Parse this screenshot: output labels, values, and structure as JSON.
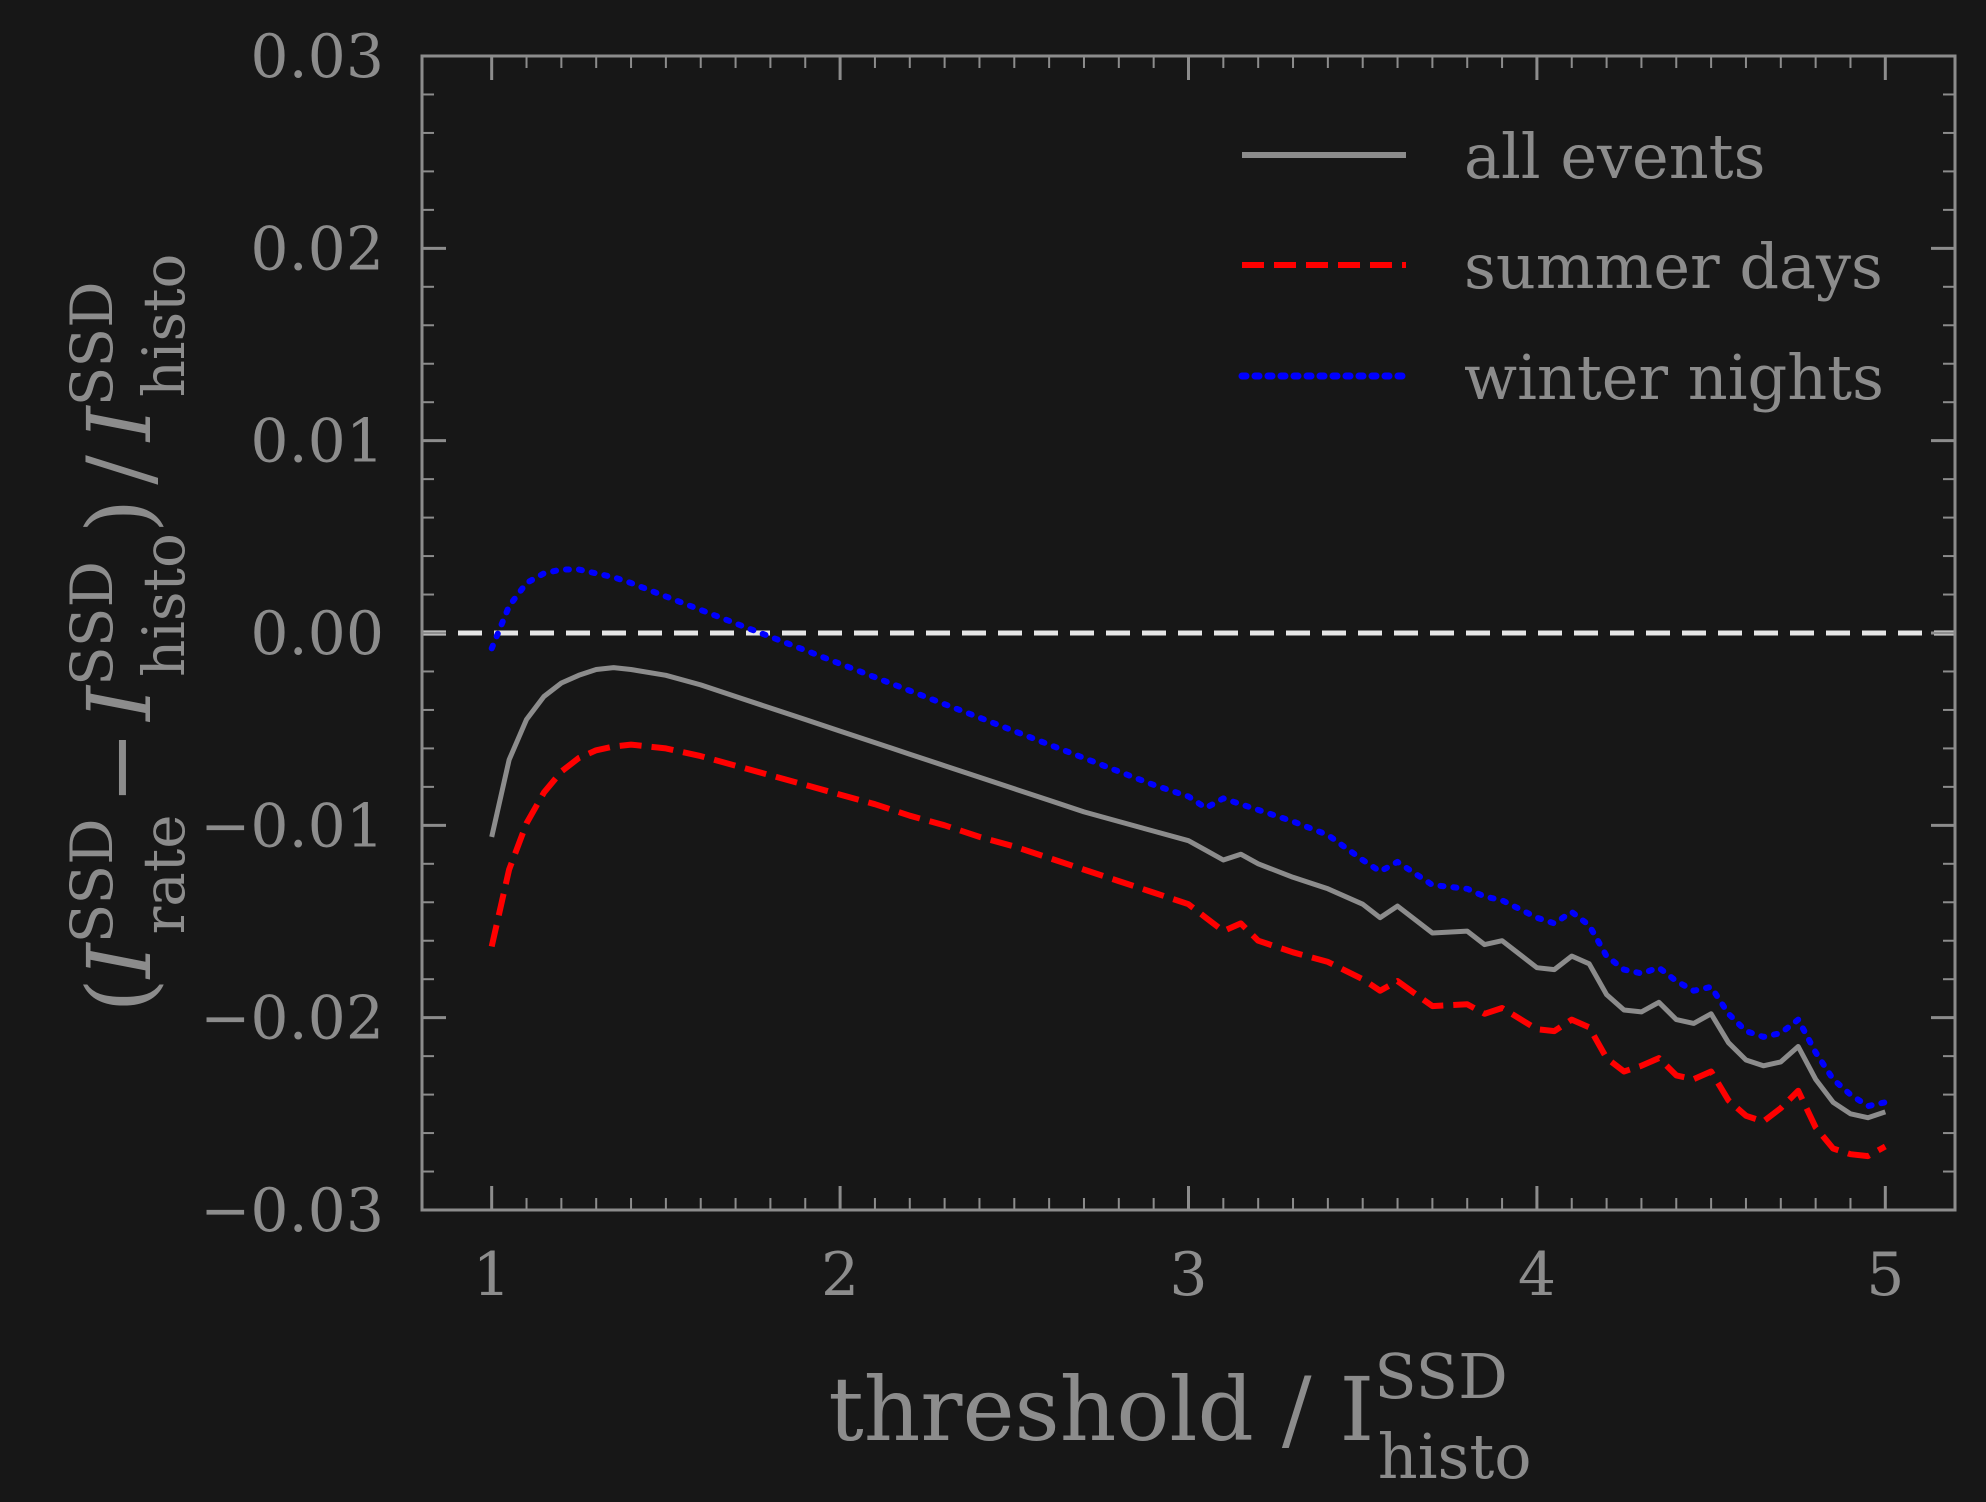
{
  "chart_data": {
    "type": "line",
    "title": "",
    "xlabel": {
      "main": "threshold / I",
      "sup": "SSD",
      "sub": "histo"
    },
    "ylabel": {
      "open": "(",
      "term1": "I",
      "term1_sup": "SSD",
      "term1_sub": "rate",
      "minus": "−",
      "term2": "I",
      "term2_sup": "SSD",
      "term2_sub": "histo",
      "close": ")",
      "slash": "/",
      "term3": "I",
      "term3_sup": "SSD",
      "term3_sub": "histo"
    },
    "xlim": [
      0.8,
      5.2
    ],
    "ylim": [
      -0.03,
      0.03
    ],
    "xticks": [
      1,
      2,
      3,
      4,
      5
    ],
    "xtick_labels": [
      "1",
      "2",
      "3",
      "4",
      "5"
    ],
    "yticks": [
      -0.03,
      -0.02,
      -0.01,
      0.0,
      0.01,
      0.02,
      0.03
    ],
    "ytick_labels": [
      "−0.03",
      "−0.02",
      "−0.01",
      "0.00",
      "0.01",
      "0.02",
      "0.03"
    ],
    "reference_line": {
      "y": 0.0,
      "style": "dashed",
      "color": "#e6e6e6"
    },
    "legend_position": "top-right",
    "series": [
      {
        "name": "all events",
        "color": "#8c8c8c",
        "style": "solid",
        "x": [
          1.0,
          1.05,
          1.1,
          1.15,
          1.2,
          1.25,
          1.3,
          1.35,
          1.4,
          1.5,
          1.6,
          1.7,
          1.8,
          1.9,
          2.0,
          2.1,
          2.2,
          2.3,
          2.4,
          2.5,
          2.6,
          2.7,
          2.8,
          2.9,
          3.0,
          3.05,
          3.1,
          3.15,
          3.2,
          3.3,
          3.4,
          3.5,
          3.55,
          3.6,
          3.7,
          3.8,
          3.85,
          3.9,
          4.0,
          4.05,
          4.1,
          4.15,
          4.2,
          4.25,
          4.3,
          4.35,
          4.4,
          4.45,
          4.5,
          4.55,
          4.6,
          4.65,
          4.7,
          4.75,
          4.8,
          4.85,
          4.9,
          4.95,
          5.0
        ],
        "values": [
          -0.0106,
          -0.0066,
          -0.0045,
          -0.0033,
          -0.0026,
          -0.0022,
          -0.0019,
          -0.0018,
          -0.0019,
          -0.0022,
          -0.0027,
          -0.0033,
          -0.0039,
          -0.0045,
          -0.0051,
          -0.0057,
          -0.0063,
          -0.0069,
          -0.0075,
          -0.0081,
          -0.0087,
          -0.0093,
          -0.0098,
          -0.0103,
          -0.0108,
          -0.0113,
          -0.0118,
          -0.0115,
          -0.012,
          -0.0127,
          -0.0133,
          -0.0141,
          -0.0148,
          -0.0142,
          -0.0156,
          -0.0155,
          -0.0162,
          -0.016,
          -0.0174,
          -0.0175,
          -0.0168,
          -0.0172,
          -0.0188,
          -0.0196,
          -0.0197,
          -0.0192,
          -0.0201,
          -0.0203,
          -0.0198,
          -0.0213,
          -0.0222,
          -0.0225,
          -0.0223,
          -0.0215,
          -0.0232,
          -0.0244,
          -0.025,
          -0.0252,
          -0.0249
        ]
      },
      {
        "name": "summer days",
        "color": "#ff0000",
        "style": "dashed",
        "x": [
          1.0,
          1.05,
          1.1,
          1.15,
          1.2,
          1.25,
          1.3,
          1.35,
          1.4,
          1.5,
          1.6,
          1.7,
          1.8,
          1.9,
          2.0,
          2.1,
          2.2,
          2.3,
          2.4,
          2.5,
          2.6,
          2.7,
          2.8,
          2.9,
          3.0,
          3.05,
          3.1,
          3.15,
          3.2,
          3.3,
          3.4,
          3.5,
          3.55,
          3.6,
          3.7,
          3.8,
          3.85,
          3.9,
          4.0,
          4.05,
          4.1,
          4.15,
          4.2,
          4.25,
          4.3,
          4.35,
          4.4,
          4.45,
          4.5,
          4.55,
          4.6,
          4.65,
          4.7,
          4.75,
          4.8,
          4.85,
          4.9,
          4.95,
          5.0
        ],
        "values": [
          -0.0163,
          -0.0123,
          -0.0099,
          -0.0083,
          -0.0072,
          -0.0065,
          -0.0061,
          -0.0059,
          -0.0058,
          -0.006,
          -0.0064,
          -0.0069,
          -0.0074,
          -0.0079,
          -0.0084,
          -0.0089,
          -0.0095,
          -0.01,
          -0.0106,
          -0.0111,
          -0.0117,
          -0.0123,
          -0.0129,
          -0.0135,
          -0.0141,
          -0.0148,
          -0.0155,
          -0.0151,
          -0.016,
          -0.0166,
          -0.0171,
          -0.018,
          -0.0186,
          -0.0181,
          -0.0194,
          -0.0193,
          -0.0198,
          -0.0195,
          -0.0206,
          -0.0207,
          -0.0201,
          -0.0205,
          -0.0221,
          -0.0228,
          -0.0225,
          -0.0221,
          -0.023,
          -0.0232,
          -0.0228,
          -0.0243,
          -0.0251,
          -0.0254,
          -0.0247,
          -0.0238,
          -0.0257,
          -0.0268,
          -0.0271,
          -0.0272,
          -0.0267
        ]
      },
      {
        "name": "winter nights",
        "color": "#0000ff",
        "style": "dotted",
        "x": [
          1.0,
          1.05,
          1.1,
          1.15,
          1.2,
          1.25,
          1.3,
          1.35,
          1.4,
          1.5,
          1.6,
          1.7,
          1.8,
          1.9,
          2.0,
          2.1,
          2.2,
          2.3,
          2.4,
          2.5,
          2.6,
          2.7,
          2.8,
          2.9,
          3.0,
          3.05,
          3.1,
          3.15,
          3.2,
          3.3,
          3.4,
          3.5,
          3.55,
          3.6,
          3.7,
          3.8,
          3.85,
          3.9,
          4.0,
          4.05,
          4.1,
          4.15,
          4.2,
          4.25,
          4.3,
          4.35,
          4.4,
          4.45,
          4.5,
          4.55,
          4.6,
          4.65,
          4.7,
          4.75,
          4.8,
          4.85,
          4.9,
          4.95,
          5.0
        ],
        "values": [
          -0.0008,
          0.0014,
          0.0026,
          0.0031,
          0.0033,
          0.0033,
          0.0031,
          0.0029,
          0.0026,
          0.0019,
          0.0012,
          0.0005,
          -0.0002,
          -0.0009,
          -0.0016,
          -0.0023,
          -0.003,
          -0.0037,
          -0.0044,
          -0.0051,
          -0.0058,
          -0.0065,
          -0.0072,
          -0.0079,
          -0.0085,
          -0.0091,
          -0.0086,
          -0.0089,
          -0.0092,
          -0.0098,
          -0.0105,
          -0.0118,
          -0.0124,
          -0.0119,
          -0.0131,
          -0.0133,
          -0.0137,
          -0.0139,
          -0.0148,
          -0.0151,
          -0.0145,
          -0.0152,
          -0.0168,
          -0.0175,
          -0.0177,
          -0.0174,
          -0.0181,
          -0.0186,
          -0.0184,
          -0.0198,
          -0.0207,
          -0.021,
          -0.0208,
          -0.0201,
          -0.0218,
          -0.0232,
          -0.024,
          -0.0246,
          -0.0244
        ]
      }
    ]
  }
}
